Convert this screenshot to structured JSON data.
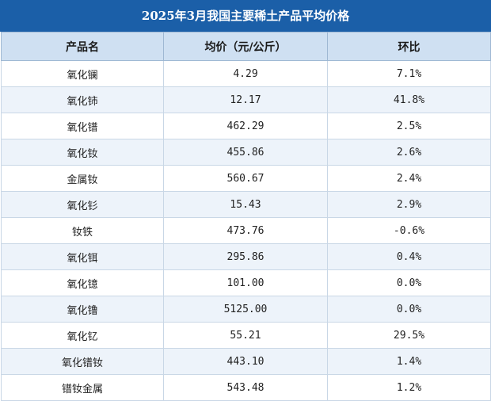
{
  "title": "2025年3月我国主要稀土产品平均价格",
  "columns": [
    "产品名",
    "均价（元/公斤）",
    "环比"
  ],
  "rows": [
    {
      "name": "氧化镧",
      "price": "4.29",
      "mom": "7.1%"
    },
    {
      "name": "氧化铈",
      "price": "12.17",
      "mom": "41.8%"
    },
    {
      "name": "氧化镨",
      "price": "462.29",
      "mom": "2.5%"
    },
    {
      "name": "氧化钕",
      "price": "455.86",
      "mom": "2.6%"
    },
    {
      "name": "金属钕",
      "price": "560.67",
      "mom": "2.4%"
    },
    {
      "name": "氧化钐",
      "price": "15.43",
      "mom": "2.9%"
    },
    {
      "name": "钕铁",
      "price": "473.76",
      "mom": "-0.6%"
    },
    {
      "name": "氧化铒",
      "price": "295.86",
      "mom": "0.4%"
    },
    {
      "name": "氧化镱",
      "price": "101.00",
      "mom": "0.0%"
    },
    {
      "name": "氧化镥",
      "price": "5125.00",
      "mom": "0.0%"
    },
    {
      "name": "氧化钇",
      "price": "55.21",
      "mom": "29.5%"
    },
    {
      "name": "氧化镨钕",
      "price": "443.10",
      "mom": "1.4%"
    },
    {
      "name": "镨钕金属",
      "price": "543.48",
      "mom": "1.2%"
    }
  ]
}
